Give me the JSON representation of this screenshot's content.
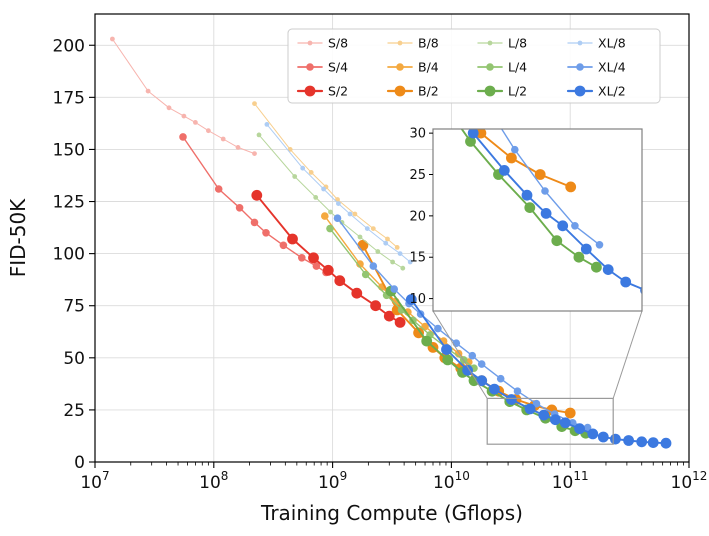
{
  "page": {
    "background": "#ffffff"
  },
  "chart_data": {
    "type": "line",
    "title": "",
    "xlabel": "Training Compute (Gflops)",
    "ylabel": "FID-50K",
    "xscale": "log",
    "xlim": [
      10000000.0,
      1000000000000.0
    ],
    "ylim": [
      0,
      215
    ],
    "yticks": [
      0,
      25,
      50,
      75,
      100,
      125,
      150,
      175,
      200
    ],
    "xtick_base": "10",
    "xtick_exponents": [
      7,
      8,
      9,
      10,
      11,
      12
    ],
    "grid": true,
    "grid_color": "#dcdcdc",
    "axis_color": "#000000",
    "legend": {
      "columns": 4,
      "rows": 3,
      "border_color": "#cccccc"
    },
    "series": [
      {
        "name": "S/8",
        "color": "#f7b4ae",
        "marker_radius": 2.4,
        "line_width": 1.0,
        "points": [
          [
            14000000.0,
            203
          ],
          [
            28000000.0,
            178
          ],
          [
            42000000.0,
            170
          ],
          [
            56000000.0,
            166
          ],
          [
            70000000.0,
            163
          ],
          [
            90000000.0,
            159
          ],
          [
            120000000.0,
            155
          ],
          [
            160000000.0,
            151
          ],
          [
            220000000.0,
            148
          ]
        ]
      },
      {
        "name": "S/4",
        "color": "#ef6f6a",
        "marker_radius": 3.8,
        "line_width": 1.4,
        "points": [
          [
            55000000.0,
            156
          ],
          [
            110000000.0,
            131
          ],
          [
            165000000.0,
            122
          ],
          [
            220000000.0,
            115
          ],
          [
            275000000.0,
            110
          ],
          [
            385000000.0,
            104
          ],
          [
            550000000.0,
            98
          ],
          [
            730000000.0,
            94
          ],
          [
            880000000.0,
            91
          ]
        ]
      },
      {
        "name": "S/2",
        "color": "#e5342b",
        "marker_radius": 5.4,
        "line_width": 1.9,
        "points": [
          [
            230000000.0,
            128
          ],
          [
            460000000.0,
            107
          ],
          [
            690000000.0,
            98
          ],
          [
            920000000.0,
            92
          ],
          [
            1150000000.0,
            87
          ],
          [
            1600000000.0,
            81
          ],
          [
            2300000000.0,
            75
          ],
          [
            3000000000.0,
            70
          ],
          [
            3700000000.0,
            67
          ]
        ]
      },
      {
        "name": "B/8",
        "color": "#f8cf8e",
        "marker_radius": 2.4,
        "line_width": 1.0,
        "points": [
          [
            220000000.0,
            172
          ],
          [
            440000000.0,
            150
          ],
          [
            660000000.0,
            139
          ],
          [
            880000000.0,
            132
          ],
          [
            1100000000.0,
            126
          ],
          [
            1540000000.0,
            119
          ],
          [
            2200000000.0,
            112
          ],
          [
            2900000000.0,
            107
          ],
          [
            3500000000.0,
            103
          ]
        ]
      },
      {
        "name": "B/4",
        "color": "#f4a940",
        "marker_radius": 3.8,
        "line_width": 1.4,
        "points": [
          [
            860000000.0,
            118
          ],
          [
            1700000000.0,
            95
          ],
          [
            2600000000.0,
            84
          ],
          [
            3400000000.0,
            77
          ],
          [
            4300000000.0,
            72
          ],
          [
            6000000000.0,
            65
          ],
          [
            8600000000.0,
            58
          ],
          [
            11500000000.0,
            52
          ],
          [
            14000000000.0,
            48
          ]
        ]
      },
      {
        "name": "B/2",
        "color": "#ee8a18",
        "marker_radius": 5.4,
        "line_width": 1.9,
        "points": [
          [
            1800000000.0,
            104
          ],
          [
            3500000000.0,
            73
          ],
          [
            5300000000.0,
            62
          ],
          [
            7000000000.0,
            55
          ],
          [
            8800000000.0,
            50
          ],
          [
            12000000000.0,
            45
          ],
          [
            18000000000.0,
            39
          ],
          [
            25000000000.0,
            34
          ],
          [
            35000000000.0,
            30
          ],
          [
            50000000000.0,
            27
          ],
          [
            70000000000.0,
            25
          ],
          [
            100000000000.0,
            23.5
          ]
        ]
      },
      {
        "name": "L/8",
        "color": "#b7d69c",
        "marker_radius": 2.4,
        "line_width": 1.0,
        "points": [
          [
            240000000.0,
            157
          ],
          [
            480000000.0,
            137
          ],
          [
            720000000.0,
            127
          ],
          [
            960000000.0,
            120
          ],
          [
            1200000000.0,
            115
          ],
          [
            1700000000.0,
            108
          ],
          [
            2400000000.0,
            101
          ],
          [
            3200000000.0,
            96
          ],
          [
            3900000000.0,
            93
          ]
        ]
      },
      {
        "name": "L/4",
        "color": "#93c571",
        "marker_radius": 3.8,
        "line_width": 1.4,
        "points": [
          [
            950000000.0,
            112
          ],
          [
            1900000000.0,
            90
          ],
          [
            2850000000.0,
            80
          ],
          [
            3800000000.0,
            73
          ],
          [
            4750000000.0,
            68
          ],
          [
            6600000000.0,
            61
          ],
          [
            9500000000.0,
            54
          ],
          [
            12700000000.0,
            49
          ],
          [
            15500000000.0,
            45
          ]
        ]
      },
      {
        "name": "L/2",
        "color": "#6cad4d",
        "marker_radius": 5.4,
        "line_width": 1.9,
        "points": [
          [
            3100000000.0,
            82
          ],
          [
            6200000000.0,
            58
          ],
          [
            9300000000.0,
            49
          ],
          [
            12400000000.0,
            43
          ],
          [
            15500000000.0,
            39
          ],
          [
            22000000000.0,
            34
          ],
          [
            31000000000.0,
            29
          ],
          [
            43000000000.0,
            25
          ],
          [
            62000000000.0,
            21
          ],
          [
            85000000000.0,
            17
          ],
          [
            110000000000.0,
            15
          ],
          [
            135000000000.0,
            13.8
          ]
        ]
      },
      {
        "name": "XL/8",
        "color": "#aecdf4",
        "marker_radius": 2.4,
        "line_width": 1.0,
        "points": [
          [
            280000000.0,
            162
          ],
          [
            560000000.0,
            141
          ],
          [
            840000000.0,
            131
          ],
          [
            1120000000.0,
            124
          ],
          [
            1400000000.0,
            119
          ],
          [
            1960000000.0,
            112
          ],
          [
            2800000000.0,
            105
          ],
          [
            3700000000.0,
            100
          ],
          [
            4500000000.0,
            96
          ]
        ]
      },
      {
        "name": "XL/4",
        "color": "#6e9de9",
        "marker_radius": 3.8,
        "line_width": 1.4,
        "points": [
          [
            1100000000.0,
            117
          ],
          [
            2200000000.0,
            94
          ],
          [
            3300000000.0,
            83
          ],
          [
            4400000000.0,
            76
          ],
          [
            5500000000.0,
            71
          ],
          [
            7700000000.0,
            64
          ],
          [
            11000000000.0,
            57
          ],
          [
            15000000000.0,
            51
          ],
          [
            18000000000.0,
            47
          ],
          [
            26000000000.0,
            40
          ],
          [
            36000000000.0,
            34
          ],
          [
            52000000000.0,
            28
          ],
          [
            74000000000.0,
            23
          ],
          [
            105000000000.0,
            18.8
          ],
          [
            140000000000.0,
            16.5
          ]
        ]
      },
      {
        "name": "XL/2",
        "color": "#3c79e0",
        "marker_radius": 5.4,
        "line_width": 1.9,
        "points": [
          [
            4600000000.0,
            78
          ],
          [
            9100000000.0,
            54
          ],
          [
            13700000000.0,
            44
          ],
          [
            18000000000.0,
            39
          ],
          [
            23000000000.0,
            35
          ],
          [
            32000000000.0,
            30
          ],
          [
            46000000000.0,
            25.5
          ],
          [
            60000000000.0,
            22.5
          ],
          [
            75000000000.0,
            20.3
          ],
          [
            91000000000.0,
            18.8
          ],
          [
            120000000000.0,
            16
          ],
          [
            155000000000.0,
            13.5
          ],
          [
            190000000000.0,
            12
          ],
          [
            240000000000.0,
            11
          ],
          [
            310000000000.0,
            10.3
          ],
          [
            400000000000.0,
            9.7
          ],
          [
            500000000000.0,
            9.3
          ],
          [
            640000000000.0,
            9
          ]
        ]
      }
    ],
    "inset": {
      "xlim": [
        20000000000.0,
        230000000000.0
      ],
      "ylim": [
        8.5,
        30.5
      ],
      "yticks": [
        10,
        15,
        20,
        25,
        30
      ],
      "border_color": "#808080",
      "connector_color": "#9a9a9a",
      "series_names": [
        "B/2",
        "L/2",
        "XL/4",
        "XL/2"
      ]
    }
  }
}
